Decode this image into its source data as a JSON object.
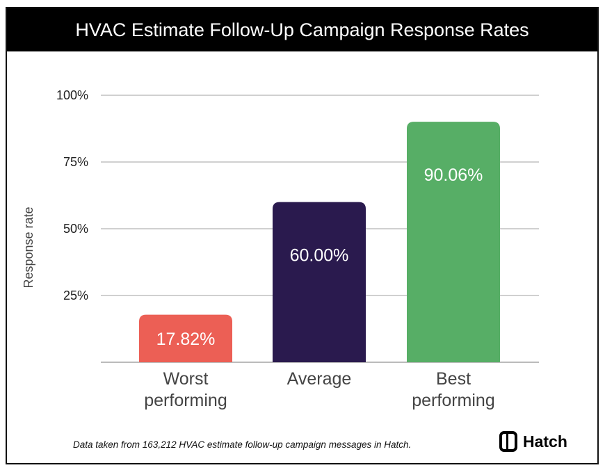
{
  "chart_data": {
    "type": "bar",
    "title": "HVAC Estimate Follow-Up Campaign Response Rates",
    "xlabel": "",
    "ylabel": "Response rate",
    "ylim": [
      0,
      100
    ],
    "yticks": [
      25,
      50,
      75,
      100
    ],
    "ytick_labels": [
      "25%",
      "50%",
      "75%",
      "100%"
    ],
    "grid": true,
    "categories": [
      "Worst performing",
      "Average",
      "Best performing"
    ],
    "category_lines": [
      [
        "Worst",
        "performing"
      ],
      [
        "Average"
      ],
      [
        "Best",
        "performing"
      ]
    ],
    "values": [
      17.82,
      60.0,
      90.06
    ],
    "data_labels": [
      "17.82%",
      "60.00%",
      "90.06%"
    ],
    "colors": [
      "#EC5F55",
      "#2A1A4E",
      "#57AE66"
    ]
  },
  "footnote": "Data taken from 163,212 HVAC estimate follow-up campaign messages in Hatch.",
  "logo": {
    "text": "Hatch"
  }
}
